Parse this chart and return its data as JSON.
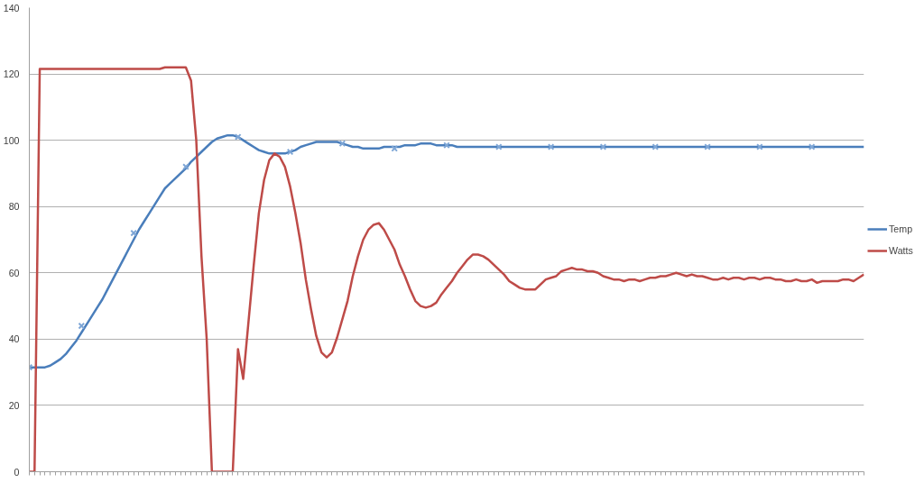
{
  "chart_data": {
    "type": "line",
    "categories": [
      null,
      null,
      null,
      null,
      null,
      null,
      null,
      null,
      null,
      null,
      null,
      null,
      null,
      null,
      null,
      null,
      null,
      null,
      null,
      null,
      null,
      null,
      null,
      null,
      null,
      null,
      null,
      null,
      null,
      null,
      null,
      null,
      null,
      null,
      null,
      null,
      null,
      null,
      null,
      null,
      null,
      null,
      null,
      null,
      null,
      null,
      null,
      null,
      null,
      null,
      null,
      null,
      null,
      null,
      null,
      null,
      null,
      null,
      null,
      null,
      null,
      null,
      null,
      null,
      null,
      null,
      null,
      null,
      null,
      null,
      null,
      null,
      null,
      null,
      null,
      null,
      null,
      null,
      null,
      null,
      null,
      null,
      null,
      null,
      null,
      null,
      null,
      null,
      null,
      null,
      null,
      null,
      null,
      null,
      null,
      null,
      null,
      null,
      null,
      null,
      null,
      null,
      null,
      null,
      null,
      null,
      null,
      null,
      null,
      null,
      null,
      null,
      null,
      null,
      null,
      null,
      null,
      null,
      null,
      null,
      null,
      null,
      null,
      null,
      null,
      null,
      null,
      null,
      null,
      null,
      null,
      null,
      null,
      null,
      null,
      null,
      null,
      null,
      null,
      null,
      null,
      null,
      null,
      null,
      null,
      null,
      null,
      null,
      null,
      null,
      null,
      null,
      null,
      null,
      null,
      null,
      null,
      null,
      null,
      null,
      null
    ],
    "series": [
      {
        "name": "Temp",
        "color": "#4a7ebb",
        "values": [
          31.5,
          31.5,
          31.5,
          31.5,
          32,
          33,
          34,
          35.5,
          37.5,
          39.5,
          42,
          44.5,
          47,
          49.5,
          52,
          55,
          58,
          61,
          64,
          67,
          70,
          73,
          75.5,
          78,
          80.5,
          83,
          85.5,
          87,
          88.5,
          90,
          91.5,
          93.5,
          95,
          96.5,
          98,
          99.5,
          100.5,
          101,
          101.5,
          101.5,
          101,
          100,
          99,
          98,
          97,
          96.5,
          96,
          96,
          96,
          96,
          96.5,
          97,
          98,
          98.5,
          99,
          99.5,
          99.5,
          99.5,
          99.5,
          99.5,
          99,
          98.5,
          98,
          98,
          97.5,
          97.5,
          97.5,
          97.5,
          98,
          98,
          98,
          98,
          98.5,
          98.5,
          98.5,
          99,
          99,
          99,
          98.5,
          98.5,
          98.5,
          98.5,
          98,
          98,
          98,
          98,
          98,
          98,
          98,
          98,
          98,
          98,
          98,
          98,
          98,
          98,
          98,
          98,
          98,
          98,
          98,
          98,
          98,
          98,
          98,
          98,
          98,
          98,
          98,
          98,
          98,
          98,
          98,
          98,
          98,
          98,
          98,
          98,
          98,
          98,
          98,
          98,
          98,
          98,
          98,
          98,
          98,
          98,
          98,
          98,
          98,
          98,
          98,
          98,
          98,
          98,
          98,
          98,
          98,
          98,
          98,
          98,
          98,
          98,
          98,
          98,
          98,
          98,
          98,
          98,
          98,
          98,
          98,
          98,
          98,
          98,
          98,
          98,
          98,
          98,
          98
        ]
      },
      {
        "type": "scatter",
        "color": "#7ea6d6",
        "marker": "cross",
        "values": [
          31.5,
          null,
          null,
          null,
          null,
          null,
          null,
          null,
          null,
          null,
          44,
          null,
          null,
          null,
          null,
          null,
          null,
          null,
          null,
          null,
          72,
          null,
          null,
          null,
          null,
          null,
          null,
          null,
          null,
          null,
          92,
          null,
          null,
          null,
          null,
          null,
          null,
          null,
          null,
          null,
          101,
          null,
          null,
          null,
          null,
          null,
          null,
          null,
          null,
          null,
          96.5,
          null,
          null,
          null,
          null,
          null,
          null,
          null,
          null,
          null,
          99,
          null,
          null,
          null,
          null,
          null,
          null,
          null,
          null,
          null,
          97.5,
          null,
          null,
          null,
          null,
          null,
          null,
          null,
          null,
          null,
          98.5,
          null,
          null,
          null,
          null,
          null,
          null,
          null,
          null,
          null,
          98,
          null,
          null,
          null,
          null,
          null,
          null,
          null,
          null,
          null,
          98,
          null,
          null,
          null,
          null,
          null,
          null,
          null,
          null,
          null,
          98,
          null,
          null,
          null,
          null,
          null,
          null,
          null,
          null,
          null,
          98,
          null,
          null,
          null,
          null,
          null,
          null,
          null,
          null,
          null,
          98,
          null,
          null,
          null,
          null,
          null,
          null,
          null,
          null,
          null,
          98,
          null,
          null,
          null,
          null,
          null,
          null,
          null,
          null,
          null,
          98,
          null,
          null,
          null,
          null,
          null,
          null,
          null,
          null,
          null,
          null
        ]
      },
      {
        "name": "Watts",
        "color": "#be4b48",
        "values": [
          0,
          0,
          121.5,
          121.5,
          121.5,
          121.5,
          121.5,
          121.5,
          121.5,
          121.5,
          121.5,
          121.5,
          121.5,
          121.5,
          121.5,
          121.5,
          121.5,
          121.5,
          121.5,
          121.5,
          121.5,
          121.5,
          121.5,
          121.5,
          121.5,
          121.5,
          122,
          122,
          122,
          122,
          122,
          118,
          100,
          65,
          40,
          0,
          0,
          0,
          0,
          0,
          37,
          28,
          45,
          62,
          78,
          88,
          94,
          96,
          95,
          92,
          86,
          78,
          69,
          58,
          49,
          41,
          36,
          34.5,
          36,
          40.5,
          46,
          51.5,
          59,
          65,
          70,
          73,
          74.5,
          75,
          73,
          70,
          67,
          62.5,
          59,
          55,
          51.5,
          50,
          49.5,
          50,
          51,
          53.5,
          55.5,
          57.5,
          60,
          62,
          64,
          65.5,
          65.5,
          65,
          64,
          62.5,
          61,
          59.5,
          57.5,
          56.5,
          55.5,
          55,
          55,
          55,
          56.5,
          58,
          58.5,
          59,
          60.5,
          61,
          61.5,
          61,
          61,
          60.5,
          60.5,
          60,
          59,
          58.5,
          58,
          58,
          57.5,
          58,
          58,
          57.5,
          58,
          58.5,
          58.5,
          59,
          59,
          59.5,
          60,
          59.5,
          59,
          59.5,
          59,
          59,
          58.5,
          58,
          58,
          58.5,
          58,
          58.5,
          58.5,
          58,
          58.5,
          58.5,
          58,
          58.5,
          58.5,
          58,
          58,
          57.5,
          57.5,
          58,
          57.5,
          57.5,
          58,
          57,
          57.5,
          57.5,
          57.5,
          57.5,
          58,
          58,
          57.5,
          58.5,
          59.5
        ]
      }
    ],
    "ylim": [
      0,
      140
    ],
    "yticks": [
      0,
      20,
      40,
      60,
      80,
      100,
      120,
      140
    ],
    "grid": "y",
    "legend": "right"
  }
}
